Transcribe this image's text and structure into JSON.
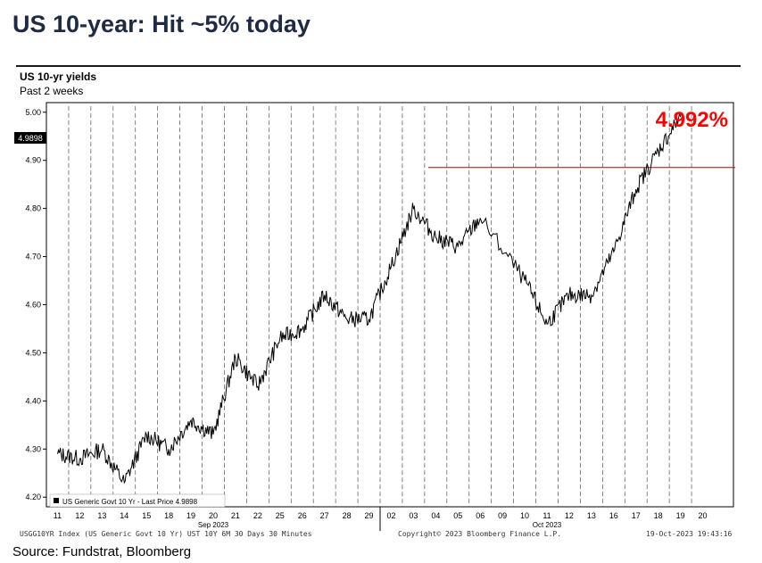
{
  "headline": "US 10-year: Hit ~5% today",
  "source": "Source: Fundstrat, Bloomberg",
  "footer": {
    "left": "USGG10YR Index (US Generic Govt 10 Yr) UST 10Y 6M 30 Days 30 Minutes",
    "center": "Copyright© 2023 Bloomberg Finance L.P.",
    "right": "19-Oct-2023 19:43:16"
  },
  "colors": {
    "line": "#000000",
    "resistance_line": "#c00000",
    "annotation": "#ff0000",
    "headline": "#1f2a44"
  },
  "chart_data": {
    "type": "line",
    "title": "US 10-yr yields",
    "subtitle": "Past 2 weeks",
    "ylim": [
      4.18,
      5.02
    ],
    "yticks": [
      "4.20",
      "4.30",
      "4.40",
      "4.50",
      "4.60",
      "4.70",
      "4.80",
      "4.90",
      "5.00"
    ],
    "last_price_tag": "4.9898",
    "annotation": "4.992%",
    "resistance_level": 4.885,
    "grid": "dashed vertical day lines",
    "legend": {
      "position": "bottom-left",
      "label": "US Generic Govt 10 Yr - Last Price 4.9898"
    },
    "x_month_labels": [
      "Sep 2023",
      "Oct 2023"
    ],
    "x": [
      "11",
      "12",
      "13",
      "14",
      "15",
      "18",
      "19",
      "20",
      "21",
      "22",
      "25",
      "26",
      "27",
      "28",
      "29",
      "02",
      "03",
      "04",
      "05",
      "06",
      "09",
      "10",
      "11",
      "12",
      "13",
      "16",
      "17",
      "18",
      "19",
      "20"
    ],
    "series": [
      {
        "name": "US Generic Govt 10 Yr",
        "points": [
          [
            "11",
            4.29
          ],
          [
            "12",
            4.28
          ],
          [
            "13",
            4.3
          ],
          [
            "14",
            4.23
          ],
          [
            "15",
            4.33
          ],
          [
            "18",
            4.3
          ],
          [
            "19",
            4.36
          ],
          [
            "20",
            4.33
          ],
          [
            "21",
            4.49
          ],
          [
            "22",
            4.43
          ],
          [
            "25",
            4.53
          ],
          [
            "26",
            4.55
          ],
          [
            "27",
            4.62
          ],
          [
            "28",
            4.57
          ],
          [
            "29",
            4.57
          ],
          [
            "02",
            4.68
          ],
          [
            "03",
            4.8
          ],
          [
            "04",
            4.74
          ],
          [
            "05",
            4.72
          ],
          [
            "06",
            4.78
          ],
          [
            "10",
            4.65
          ],
          [
            "11",
            4.56
          ],
          [
            "12",
            4.62
          ],
          [
            "13",
            4.62
          ],
          [
            "16",
            4.71
          ],
          [
            "17",
            4.84
          ],
          [
            "18",
            4.92
          ],
          [
            "19",
            4.99
          ]
        ]
      }
    ]
  }
}
